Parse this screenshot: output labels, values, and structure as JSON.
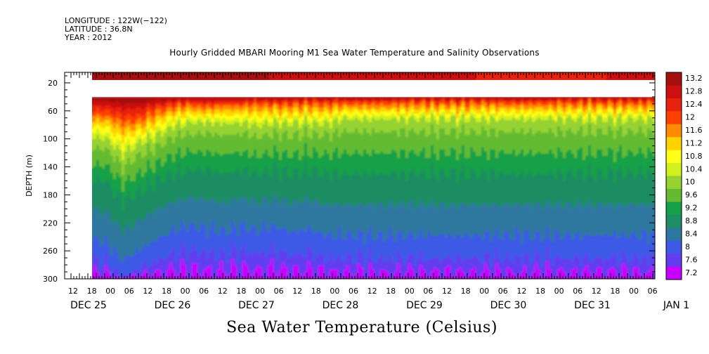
{
  "meta": {
    "longitude": "LONGITUDE : 122W(−122)",
    "latitude": "LATITUDE : 36.8N",
    "year": "YEAR : 2012"
  },
  "chart_data": {
    "type": "heatmap",
    "title": "Hourly Gridded MBARI Mooring M1 Sea Water Temperature and Salinity Observations",
    "xlabel": "",
    "ylabel": "DEPTH (m)",
    "colorbar_label": "Sea Water Temperature (Celsius)",
    "y_range": [
      5,
      300
    ],
    "y_ticks": [
      20,
      60,
      100,
      140,
      180,
      220,
      260,
      300
    ],
    "x_hour_ticks": [
      "12",
      "18",
      "00",
      "06",
      "12",
      "18",
      "00",
      "06",
      "12",
      "18",
      "00",
      "06",
      "12",
      "18",
      "00",
      "06",
      "12",
      "18",
      "00",
      "06",
      "12",
      "18",
      "00",
      "06",
      "12",
      "18",
      "00",
      "06",
      "12",
      "18",
      "00",
      "06"
    ],
    "x_day_labels": [
      "DEC 25",
      "DEC 26",
      "DEC 27",
      "DEC 28",
      "DEC 29",
      "DEC 30",
      "DEC 31",
      "JAN  1"
    ],
    "colorbar_levels": [
      "13.2",
      "12.8",
      "12.4",
      "12",
      "11.6",
      "11.2",
      "10.8",
      "10.4",
      "10",
      "9.6",
      "9.2",
      "8.8",
      "8.4",
      "8",
      "7.6",
      "7.2"
    ],
    "colorbar_min": 7.0,
    "colorbar_max": 13.4,
    "data_start": "DEC 25 18:00",
    "missing_depth_band_m": [
      16,
      40
    ],
    "surface_band_depth_m": [
      5,
      16
    ],
    "surface_band_temp_c": 13.3,
    "time_index_hours_from_dec25_12": [
      6,
      24,
      36,
      48,
      60,
      72,
      84,
      96,
      108,
      120,
      132,
      144,
      156,
      168,
      180,
      192
    ],
    "isotherm_12C_depth_m": [
      60,
      63,
      72,
      70,
      58,
      52,
      50,
      52,
      50,
      50,
      48,
      50,
      50,
      48,
      50,
      48
    ],
    "isotherm_10C_depth_m": [
      100,
      103,
      128,
      110,
      100,
      85,
      80,
      80,
      82,
      80,
      85,
      80,
      82,
      80,
      82,
      75
    ],
    "isotherm_9C_depth_m": [
      160,
      160,
      190,
      175,
      160,
      150,
      145,
      145,
      150,
      145,
      150,
      145,
      150,
      145,
      150,
      150
    ],
    "isotherm_8C_depth_m": [
      260,
      270,
      295,
      280,
      265,
      250,
      245,
      250,
      255,
      245,
      250,
      245,
      255,
      250,
      260,
      260
    ],
    "colors": {
      "13.2": "#a50f0f",
      "12.8": "#cc0f0f",
      "12.4": "#e8220f",
      "12": "#ff4000",
      "11.6": "#ff8c00",
      "11.2": "#ffd200",
      "10.8": "#ffff19",
      "10.4": "#d2f01e",
      "10": "#96d232",
      "9.6": "#64bb32",
      "9.2": "#14a046",
      "8.8": "#1e8c64",
      "8.4": "#2d78a0",
      "8": "#3c5ae6",
      "7.6": "#643cf0",
      "7.2": "#c800ff"
    }
  }
}
